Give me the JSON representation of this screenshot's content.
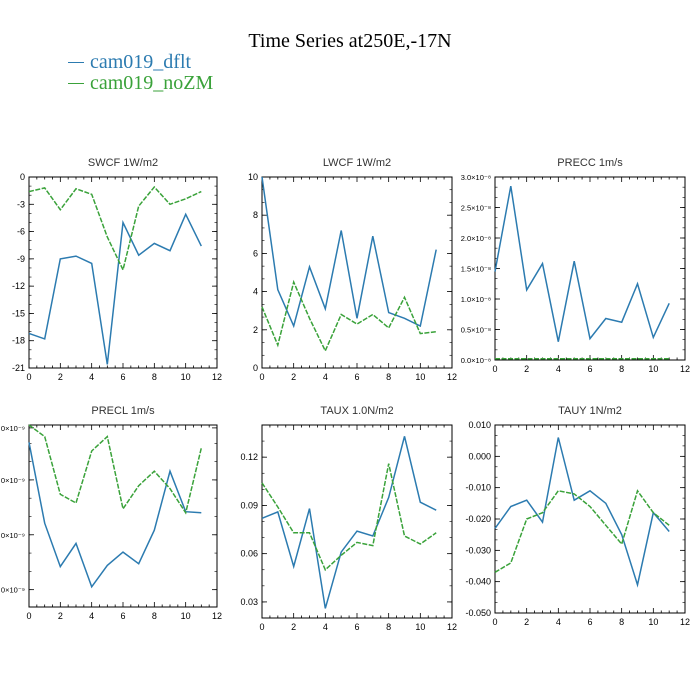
{
  "title": "Time Series at250E,-17N",
  "legend": [
    {
      "name": "cam019_dflt",
      "color": "#2c7bb0"
    },
    {
      "name": "cam019_noZM",
      "color": "#3aa23a"
    }
  ],
  "chart_data": [
    {
      "type": "line",
      "title": "SWCF   1W/m2",
      "x": [
        0,
        1,
        2,
        3,
        4,
        5,
        6,
        7,
        8,
        9,
        10,
        11
      ],
      "xlim": [
        0,
        12
      ],
      "xticks": [
        0,
        2,
        4,
        6,
        8,
        10,
        12
      ],
      "ylim": [
        -21,
        0
      ],
      "yticks": [
        0,
        -3,
        -6,
        -9,
        -12,
        -15,
        -18,
        -21
      ],
      "ytick_labels": [
        "0",
        "-3",
        "-6",
        "-9",
        "-12",
        "-15",
        "-18",
        "-21"
      ],
      "series": [
        {
          "name": "cam019_dflt",
          "values": [
            -17.2,
            -17.8,
            -9.0,
            -8.7,
            -9.5,
            -20.6,
            -5.0,
            -8.6,
            -7.3,
            -8.1,
            -4.1,
            -7.6
          ]
        },
        {
          "name": "cam019_noZM",
          "values": [
            -1.6,
            -1.2,
            -3.6,
            -1.3,
            -1.9,
            -6.6,
            -10.2,
            -3.2,
            -1.1,
            -3.0,
            -2.4,
            -1.6
          ]
        }
      ]
    },
    {
      "type": "line",
      "title": "LWCF   1W/m2",
      "x": [
        0,
        1,
        2,
        3,
        4,
        5,
        6,
        7,
        8,
        9,
        10,
        11
      ],
      "xlim": [
        0,
        12
      ],
      "xticks": [
        0,
        2,
        4,
        6,
        8,
        10,
        12
      ],
      "ylim": [
        0,
        10
      ],
      "yticks": [
        0,
        2,
        4,
        6,
        8,
        10
      ],
      "ytick_labels": [
        "0",
        "2",
        "4",
        "6",
        "8",
        "10"
      ],
      "series": [
        {
          "name": "cam019_dflt",
          "values": [
            10.0,
            4.1,
            2.2,
            5.3,
            3.1,
            7.2,
            2.6,
            6.9,
            2.9,
            2.6,
            2.2,
            6.2
          ]
        },
        {
          "name": "cam019_noZM",
          "values": [
            3.2,
            1.2,
            4.5,
            2.6,
            0.9,
            2.8,
            2.3,
            2.8,
            2.1,
            3.7,
            1.8,
            1.9
          ]
        }
      ]
    },
    {
      "type": "line",
      "title": "PRECC   1m/s",
      "x": [
        0,
        1,
        2,
        3,
        4,
        5,
        6,
        7,
        8,
        9,
        10,
        11
      ],
      "xlim": [
        0,
        12
      ],
      "xticks": [
        0,
        2,
        4,
        6,
        8,
        10,
        12
      ],
      "ylim": [
        0,
        3.0
      ],
      "yticks": [
        0,
        0.5,
        1.0,
        1.5,
        2.0,
        2.5,
        3.0
      ],
      "ytick_labels": [
        "0.0×10⁻⁸",
        "0.5×10⁻⁸",
        "1.0×10⁻⁸",
        "1.5×10⁻⁸",
        "2.0×10⁻⁸",
        "2.5×10⁻⁸",
        "3.0×10⁻⁸"
      ],
      "series": [
        {
          "name": "cam019_dflt",
          "values": [
            1.45,
            2.85,
            1.15,
            1.58,
            0.3,
            1.62,
            0.35,
            0.68,
            0.62,
            1.25,
            0.37,
            0.93
          ]
        },
        {
          "name": "cam019_noZM",
          "values": [
            0.02,
            0.02,
            0.02,
            0.02,
            0.02,
            0.02,
            0.02,
            0.02,
            0.02,
            0.02,
            0.02,
            0.02
          ]
        }
      ]
    },
    {
      "type": "line",
      "title": "PRECL   1m/s",
      "x": [
        0,
        1,
        2,
        3,
        4,
        5,
        6,
        7,
        8,
        9,
        10,
        11
      ],
      "xlim": [
        0,
        12
      ],
      "xticks": [
        0,
        2,
        4,
        6,
        8,
        10,
        12
      ],
      "ylim": [
        0,
        3.15
      ],
      "yticks": [
        0.3,
        1.25,
        2.2,
        3.1
      ],
      "ytick_labels": [
        "0×10⁻⁹",
        "0×10⁻⁹",
        "0×10⁻⁹",
        "0×10⁻⁹"
      ],
      "series": [
        {
          "name": "cam019_dflt",
          "values": [
            2.85,
            1.45,
            0.7,
            1.1,
            0.35,
            0.72,
            0.95,
            0.75,
            1.33,
            2.35,
            1.65,
            1.63
          ]
        },
        {
          "name": "cam019_noZM",
          "values": [
            3.35,
            2.95,
            1.95,
            1.8,
            2.7,
            2.95,
            1.7,
            2.1,
            2.35,
            2.05,
            1.63,
            2.75
          ]
        }
      ]
    },
    {
      "type": "line",
      "title": "TAUX   1.0N/m2",
      "x": [
        0,
        1,
        2,
        3,
        4,
        5,
        6,
        7,
        8,
        9,
        10,
        11
      ],
      "xlim": [
        0,
        12
      ],
      "xticks": [
        0,
        2,
        4,
        6,
        8,
        10,
        12
      ],
      "ylim": [
        0.02,
        0.14
      ],
      "yticks": [
        0.03,
        0.06,
        0.09,
        0.12
      ],
      "ytick_labels": [
        "0.03",
        "0.06",
        "0.09",
        "0.12"
      ],
      "series": [
        {
          "name": "cam019_dflt",
          "values": [
            0.082,
            0.086,
            0.052,
            0.088,
            0.026,
            0.061,
            0.074,
            0.071,
            0.095,
            0.133,
            0.092,
            0.087
          ]
        },
        {
          "name": "cam019_noZM",
          "values": [
            0.104,
            0.089,
            0.073,
            0.073,
            0.05,
            0.059,
            0.067,
            0.065,
            0.116,
            0.071,
            0.066,
            0.073
          ]
        }
      ]
    },
    {
      "type": "line",
      "title": "TAUY   1N/m2",
      "x": [
        0,
        1,
        2,
        3,
        4,
        5,
        6,
        7,
        8,
        9,
        10,
        11
      ],
      "xlim": [
        0,
        12
      ],
      "xticks": [
        0,
        2,
        4,
        6,
        8,
        10,
        12
      ],
      "ylim": [
        -0.05,
        0.01
      ],
      "yticks": [
        0.01,
        0.0,
        -0.01,
        -0.02,
        -0.03,
        -0.04,
        -0.05
      ],
      "ytick_labels": [
        "0.010",
        "0.000",
        "-0.010",
        "-0.020",
        "-0.030",
        "-0.040",
        "-0.050"
      ],
      "series": [
        {
          "name": "cam019_dflt",
          "values": [
            -0.023,
            -0.016,
            -0.014,
            -0.021,
            0.006,
            -0.014,
            -0.011,
            -0.015,
            -0.025,
            -0.041,
            -0.018,
            -0.024
          ]
        },
        {
          "name": "cam019_noZM",
          "values": [
            -0.037,
            -0.034,
            -0.02,
            -0.018,
            -0.011,
            -0.012,
            -0.016,
            -0.022,
            -0.028,
            -0.011,
            -0.018,
            -0.022
          ]
        }
      ]
    }
  ]
}
